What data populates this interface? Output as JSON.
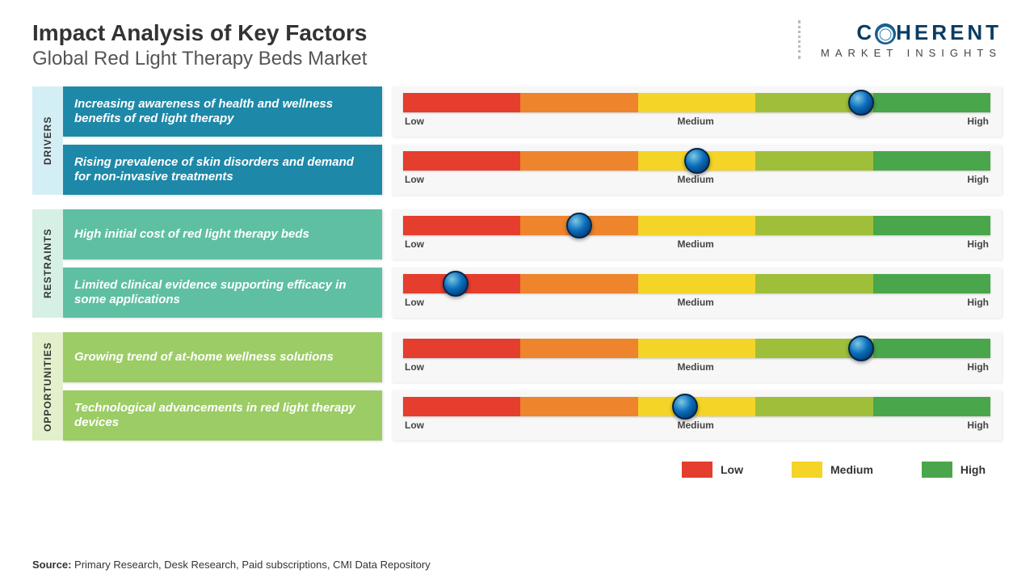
{
  "header": {
    "title": "Impact Analysis of Key Factors",
    "subtitle": "Global Red Light Therapy Beds Market"
  },
  "logo": {
    "text_pre": "C",
    "text_post": "HERENT",
    "sub": "MARKET INSIGHTS"
  },
  "gauge": {
    "segments": [
      "#e53d2e",
      "#ee842c",
      "#f4d427",
      "#9fbf3b",
      "#4aa64a"
    ],
    "labels": {
      "low": "Low",
      "medium": "Medium",
      "high": "High"
    }
  },
  "groups": [
    {
      "key": "drivers",
      "label": "DRIVERS",
      "box_color": "#1e88a8",
      "items": [
        {
          "text": "Increasing awareness of health and wellness benefits of red light therapy",
          "knob_pct": 78
        },
        {
          "text": "Rising prevalence of skin disorders and demand for non-invasive treatments",
          "knob_pct": 50
        }
      ]
    },
    {
      "key": "restraints",
      "label": "RESTRAINTS",
      "box_color": "#5fbfa2",
      "items": [
        {
          "text": "High initial cost of red light therapy beds",
          "knob_pct": 30
        },
        {
          "text": "Limited clinical evidence supporting efficacy in some applications",
          "knob_pct": 9
        }
      ]
    },
    {
      "key": "opportunities",
      "label": "OPPORTUNITIES",
      "box_color": "#9ccc65",
      "items": [
        {
          "text": "Growing trend of at-home wellness solutions",
          "knob_pct": 78
        },
        {
          "text": "Technological advancements in red light therapy devices",
          "knob_pct": 48
        }
      ]
    }
  ],
  "legend": {
    "items": [
      {
        "label": "Low",
        "color": "#e53d2e"
      },
      {
        "label": "Medium",
        "color": "#f4d427"
      },
      {
        "label": "High",
        "color": "#4aa64a"
      }
    ]
  },
  "source": {
    "prefix": "Source:",
    "text": " Primary Research, Desk Research, Paid subscriptions, CMI Data Repository"
  }
}
